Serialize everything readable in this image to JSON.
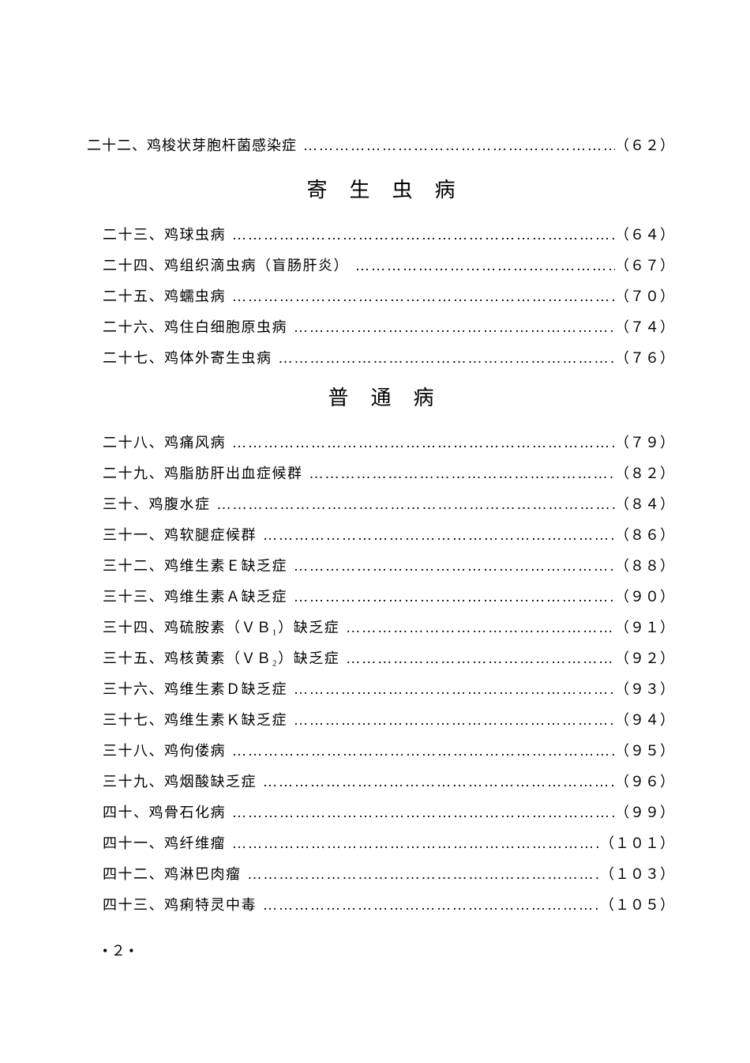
{
  "topEntry": {
    "label": "二十二、鸡梭状芽胞杆菌感染症",
    "page": "（６２）"
  },
  "sections": [
    {
      "heading": "寄生虫病",
      "entries": [
        {
          "label": "二十三、鸡球虫病",
          "page": "（６４）"
        },
        {
          "label": "二十四、鸡组织滴虫病（盲肠肝炎）",
          "page": "（６７）"
        },
        {
          "label": "二十五、鸡蠕虫病",
          "page": "（７０）"
        },
        {
          "label": "二十六、鸡住白细胞原虫病",
          "page": "（７４）"
        },
        {
          "label": "二十七、鸡体外寄生虫病",
          "page": "（７６）"
        }
      ]
    },
    {
      "heading": "普通病",
      "entries": [
        {
          "label": "二十八、鸡痛风病",
          "page": "（７９）"
        },
        {
          "label": "二十九、鸡脂肪肝出血症候群",
          "page": "（８２）"
        },
        {
          "label": "三十、鸡腹水症",
          "page": "（８４）"
        },
        {
          "label": "三十一、鸡软腿症候群",
          "page": "（８６）"
        },
        {
          "label": "三十二、鸡维生素Ｅ缺乏症",
          "page": "（８８）"
        },
        {
          "label": "三十三、鸡维生素Ａ缺乏症",
          "page": "（９０）"
        },
        {
          "label": "三十四、鸡硫胺素（ＶＢ₁）缺乏症",
          "page": "（９１）"
        },
        {
          "label": "三十五、鸡核黄素（ＶＢ₂）缺乏症",
          "page": "（９２）"
        },
        {
          "label": "三十六、鸡维生素Ｄ缺乏症",
          "page": "（９３）"
        },
        {
          "label": "三十七、鸡维生素Ｋ缺乏症",
          "page": "（９４）"
        },
        {
          "label": "三十八、鸡佝偻病",
          "page": "（９５）"
        },
        {
          "label": "三十九、鸡烟酸缺乏症",
          "page": "（９６）"
        },
        {
          "label": "四十、鸡骨石化病",
          "page": "（９９）"
        },
        {
          "label": "四十一、鸡纤维瘤",
          "page": "（１０１）"
        },
        {
          "label": "四十二、鸡淋巴肉瘤",
          "page": "（１０３）"
        },
        {
          "label": "四十三、鸡痢特灵中毒",
          "page": "（１０５）"
        }
      ]
    }
  ],
  "pageNumber": "• ２ •",
  "dotLeader": "…………………………………………………………………………………………"
}
